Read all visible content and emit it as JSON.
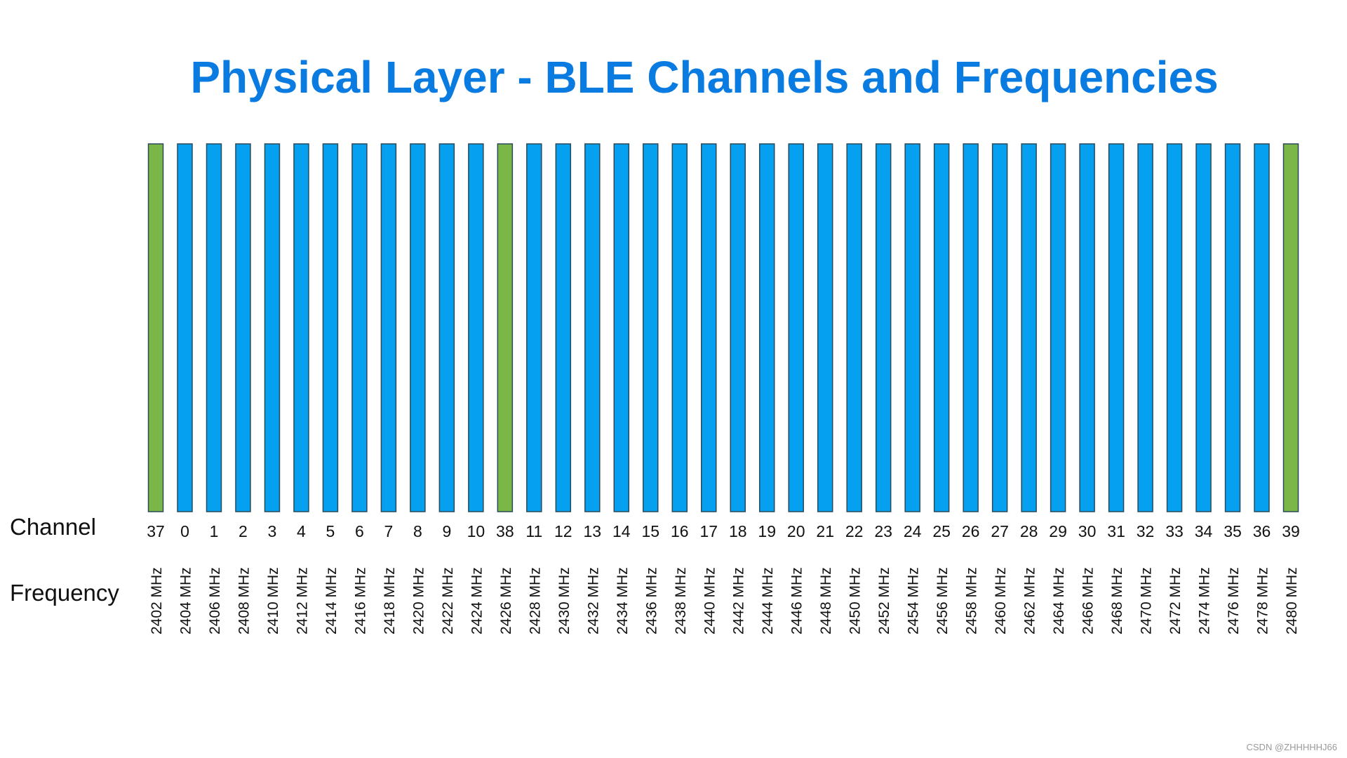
{
  "title": "Physical Layer - BLE Channels and Frequencies",
  "row_labels": {
    "channel": "Channel",
    "frequency": "Frequency"
  },
  "watermark": "CSDN @ZHHHHHJ66",
  "colors": {
    "title": "#0a7be0",
    "advertising_channel": "#7ab648",
    "data_channel": "#05a0f0",
    "bar_border": "#2a4a58"
  },
  "chart_data": {
    "type": "bar",
    "categories": [
      "37",
      "0",
      "1",
      "2",
      "3",
      "4",
      "5",
      "6",
      "7",
      "8",
      "9",
      "10",
      "38",
      "11",
      "12",
      "13",
      "14",
      "15",
      "16",
      "17",
      "18",
      "19",
      "20",
      "21",
      "22",
      "23",
      "24",
      "25",
      "26",
      "27",
      "28",
      "29",
      "30",
      "31",
      "32",
      "33",
      "34",
      "35",
      "36",
      "39"
    ],
    "frequencies": [
      "2402 MHz",
      "2404 MHz",
      "2406 MHz",
      "2408 MHz",
      "2410 MHz",
      "2412 MHz",
      "2414 MHz",
      "2416 MHz",
      "2418 MHz",
      "2420 MHz",
      "2422 MHz",
      "2424 MHz",
      "2426 MHz",
      "2428 MHz",
      "2430 MHz",
      "2432 MHz",
      "2434 MHz",
      "2436 MHz",
      "2438 MHz",
      "2440 MHz",
      "2442 MHz",
      "2444 MHz",
      "2446 MHz",
      "2448 MHz",
      "2450 MHz",
      "2452 MHz",
      "2454 MHz",
      "2456 MHz",
      "2458 MHz",
      "2460 MHz",
      "2462 MHz",
      "2464 MHz",
      "2466 MHz",
      "2468 MHz",
      "2470 MHz",
      "2472 MHz",
      "2474 MHz",
      "2476 MHz",
      "2478 MHz",
      "2480 MHz"
    ],
    "advertising_channels": [
      "37",
      "38",
      "39"
    ],
    "title": "Physical Layer - BLE Channels and Frequencies",
    "xlabel": "",
    "ylabel": ""
  }
}
